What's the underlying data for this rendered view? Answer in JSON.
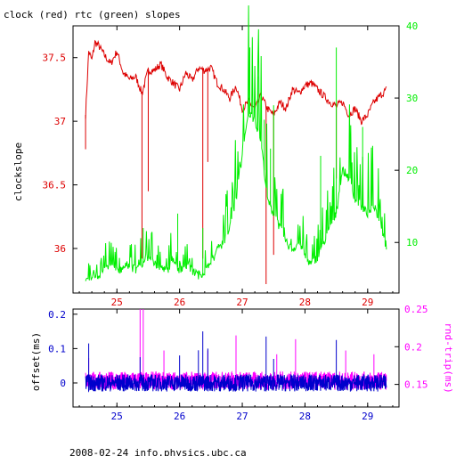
{
  "header": {
    "title": "clock (red) rtc (green) slopes",
    "footer": "2008-02-24 info.physics.ubc.ca"
  },
  "colors": {
    "clock": "#dd0000",
    "rtc": "#00ee00",
    "offset": "#0000cc",
    "rndtrip": "#ff00ff",
    "axis": "#000000"
  },
  "chart_data": [
    {
      "type": "line",
      "title": "clock (red) rtc (green) slopes",
      "xlabel": "",
      "ylabel": "clockslope",
      "y2label": "",
      "xlim": [
        24.3,
        29.5
      ],
      "ylim": [
        35.65,
        37.75
      ],
      "y2lim": [
        3.0,
        40.0
      ],
      "x_ticks": [
        25,
        26,
        27,
        28,
        29
      ],
      "x_tick_labels": [
        "25",
        "26",
        "27",
        "28",
        "29"
      ],
      "y_ticks": [
        36,
        36.5,
        37,
        37.5
      ],
      "y_tick_labels": [
        "36",
        "36.5",
        "37",
        "37.5"
      ],
      "y2_ticks": [
        10,
        20,
        30,
        40
      ],
      "y2_tick_labels": [
        "10",
        "20",
        "30",
        "40"
      ],
      "grid": false,
      "series": [
        {
          "name": "clock",
          "axis": "left",
          "x": [
            24.5,
            24.55,
            24.6,
            24.65,
            24.7,
            24.8,
            24.9,
            25.0,
            25.1,
            25.2,
            25.3,
            25.4,
            25.5,
            25.6,
            25.7,
            25.8,
            25.9,
            26.0,
            26.1,
            26.2,
            26.3,
            26.4,
            26.5,
            26.6,
            26.7,
            26.8,
            26.9,
            27.0,
            27.1,
            27.2,
            27.3,
            27.4,
            27.5,
            27.6,
            27.7,
            27.8,
            27.9,
            28.0,
            28.1,
            28.2,
            28.3,
            28.4,
            28.5,
            28.6,
            28.7,
            28.8,
            28.9,
            29.0,
            29.1,
            29.2,
            29.3
          ],
          "values": [
            37.05,
            37.55,
            37.48,
            37.62,
            37.6,
            37.52,
            37.45,
            37.55,
            37.38,
            37.33,
            37.35,
            37.22,
            37.4,
            37.4,
            37.45,
            37.35,
            37.3,
            37.25,
            37.38,
            37.32,
            37.42,
            37.4,
            37.42,
            37.3,
            37.25,
            37.18,
            37.28,
            37.1,
            37.15,
            37.1,
            37.2,
            37.1,
            37.05,
            37.15,
            37.1,
            37.25,
            37.22,
            37.28,
            37.3,
            37.25,
            37.2,
            37.15,
            37.12,
            37.15,
            37.05,
            37.1,
            37.0,
            37.05,
            37.15,
            37.2,
            37.25
          ],
          "spikes": [
            {
              "x": 24.5,
              "min": 36.78
            },
            {
              "x": 25.4,
              "min": 35.92
            },
            {
              "x": 25.5,
              "min": 36.45
            },
            {
              "x": 26.37,
              "min": 35.92
            },
            {
              "x": 26.45,
              "min": 36.68
            },
            {
              "x": 27.38,
              "min": 35.72
            },
            {
              "x": 27.5,
              "min": 35.95
            },
            {
              "x": 28.5,
              "min": 36.55
            }
          ]
        },
        {
          "name": "rtc",
          "axis": "right",
          "x": [
            24.5,
            24.6,
            24.7,
            24.8,
            24.9,
            25.0,
            25.1,
            25.2,
            25.3,
            25.4,
            25.5,
            25.6,
            25.7,
            25.8,
            25.9,
            26.0,
            26.1,
            26.2,
            26.3,
            26.4,
            26.5,
            26.6,
            26.7,
            26.8,
            26.9,
            27.0,
            27.1,
            27.2,
            27.3,
            27.4,
            27.5,
            27.6,
            27.7,
            27.8,
            27.9,
            28.0,
            28.1,
            28.2,
            28.3,
            28.4,
            28.5,
            28.6,
            28.7,
            28.8,
            28.9,
            29.0,
            29.1,
            29.2,
            29.3
          ],
          "values": [
            5,
            5,
            5.5,
            6,
            7,
            6,
            6.5,
            7,
            6,
            7,
            8,
            7,
            6.5,
            6,
            8,
            6,
            7,
            6,
            5.5,
            6,
            7,
            9,
            10,
            12,
            16,
            22,
            28,
            27,
            24,
            16,
            14,
            12,
            10,
            9,
            10,
            8,
            7,
            8,
            10,
            12,
            14,
            20,
            19,
            16,
            15,
            14,
            15,
            13,
            9
          ],
          "spikes": [
            {
              "x": 25.42,
              "max": 12
            },
            {
              "x": 25.97,
              "max": 14
            },
            {
              "x": 26.37,
              "max": 12
            },
            {
              "x": 27.12,
              "max": 37
            },
            {
              "x": 27.25,
              "max": 33
            },
            {
              "x": 27.35,
              "max": 27
            },
            {
              "x": 27.45,
              "max": 23
            },
            {
              "x": 27.5,
              "max": 29
            },
            {
              "x": 28.25,
              "max": 22
            },
            {
              "x": 28.5,
              "max": 37
            },
            {
              "x": 28.92,
              "max": 26
            }
          ]
        }
      ]
    },
    {
      "type": "line",
      "title": "",
      "xlabel": "",
      "ylabel": "offset(ms)",
      "y2label": "rnd-trip(ms)",
      "xlim": [
        24.3,
        29.5
      ],
      "ylim": [
        -0.07,
        0.215
      ],
      "y2lim": [
        0.12,
        0.25
      ],
      "x_ticks": [
        25,
        26,
        27,
        28,
        29
      ],
      "x_tick_labels": [
        "25",
        "26",
        "27",
        "28",
        "29"
      ],
      "y_ticks": [
        0,
        0.1,
        0.2
      ],
      "y_tick_labels": [
        "0",
        "0.1",
        "0.2"
      ],
      "y2_ticks": [
        0.15,
        0.2,
        0.25
      ],
      "y2_tick_labels": [
        "0.15",
        "0.2",
        "0.25"
      ],
      "grid": false,
      "series": [
        {
          "name": "rnd-trip",
          "axis": "right",
          "x_start": 24.5,
          "x_end": 29.3,
          "baseline": 0.155,
          "noise": 0.012,
          "spikes": [
            {
              "x": 24.55,
              "max": 0.185
            },
            {
              "x": 25.37,
              "max": 0.25
            },
            {
              "x": 25.42,
              "max": 0.25
            },
            {
              "x": 25.75,
              "max": 0.195
            },
            {
              "x": 26.45,
              "max": 0.195
            },
            {
              "x": 26.9,
              "max": 0.215
            },
            {
              "x": 27.55,
              "max": 0.19
            },
            {
              "x": 27.85,
              "max": 0.21
            },
            {
              "x": 28.65,
              "max": 0.195
            },
            {
              "x": 29.1,
              "max": 0.19
            }
          ]
        },
        {
          "name": "offset",
          "axis": "left",
          "x_start": 24.5,
          "x_end": 29.3,
          "baseline": 0.0,
          "noise": 0.025,
          "spikes": [
            {
              "x": 24.55,
              "max": 0.115
            },
            {
              "x": 25.37,
              "max": 0.075
            },
            {
              "x": 26.0,
              "max": 0.08
            },
            {
              "x": 26.3,
              "max": 0.095
            },
            {
              "x": 26.37,
              "max": 0.15
            },
            {
              "x": 26.45,
              "max": 0.1
            },
            {
              "x": 27.38,
              "max": 0.135
            },
            {
              "x": 27.5,
              "max": 0.07
            },
            {
              "x": 28.5,
              "max": 0.125
            }
          ]
        }
      ]
    }
  ]
}
